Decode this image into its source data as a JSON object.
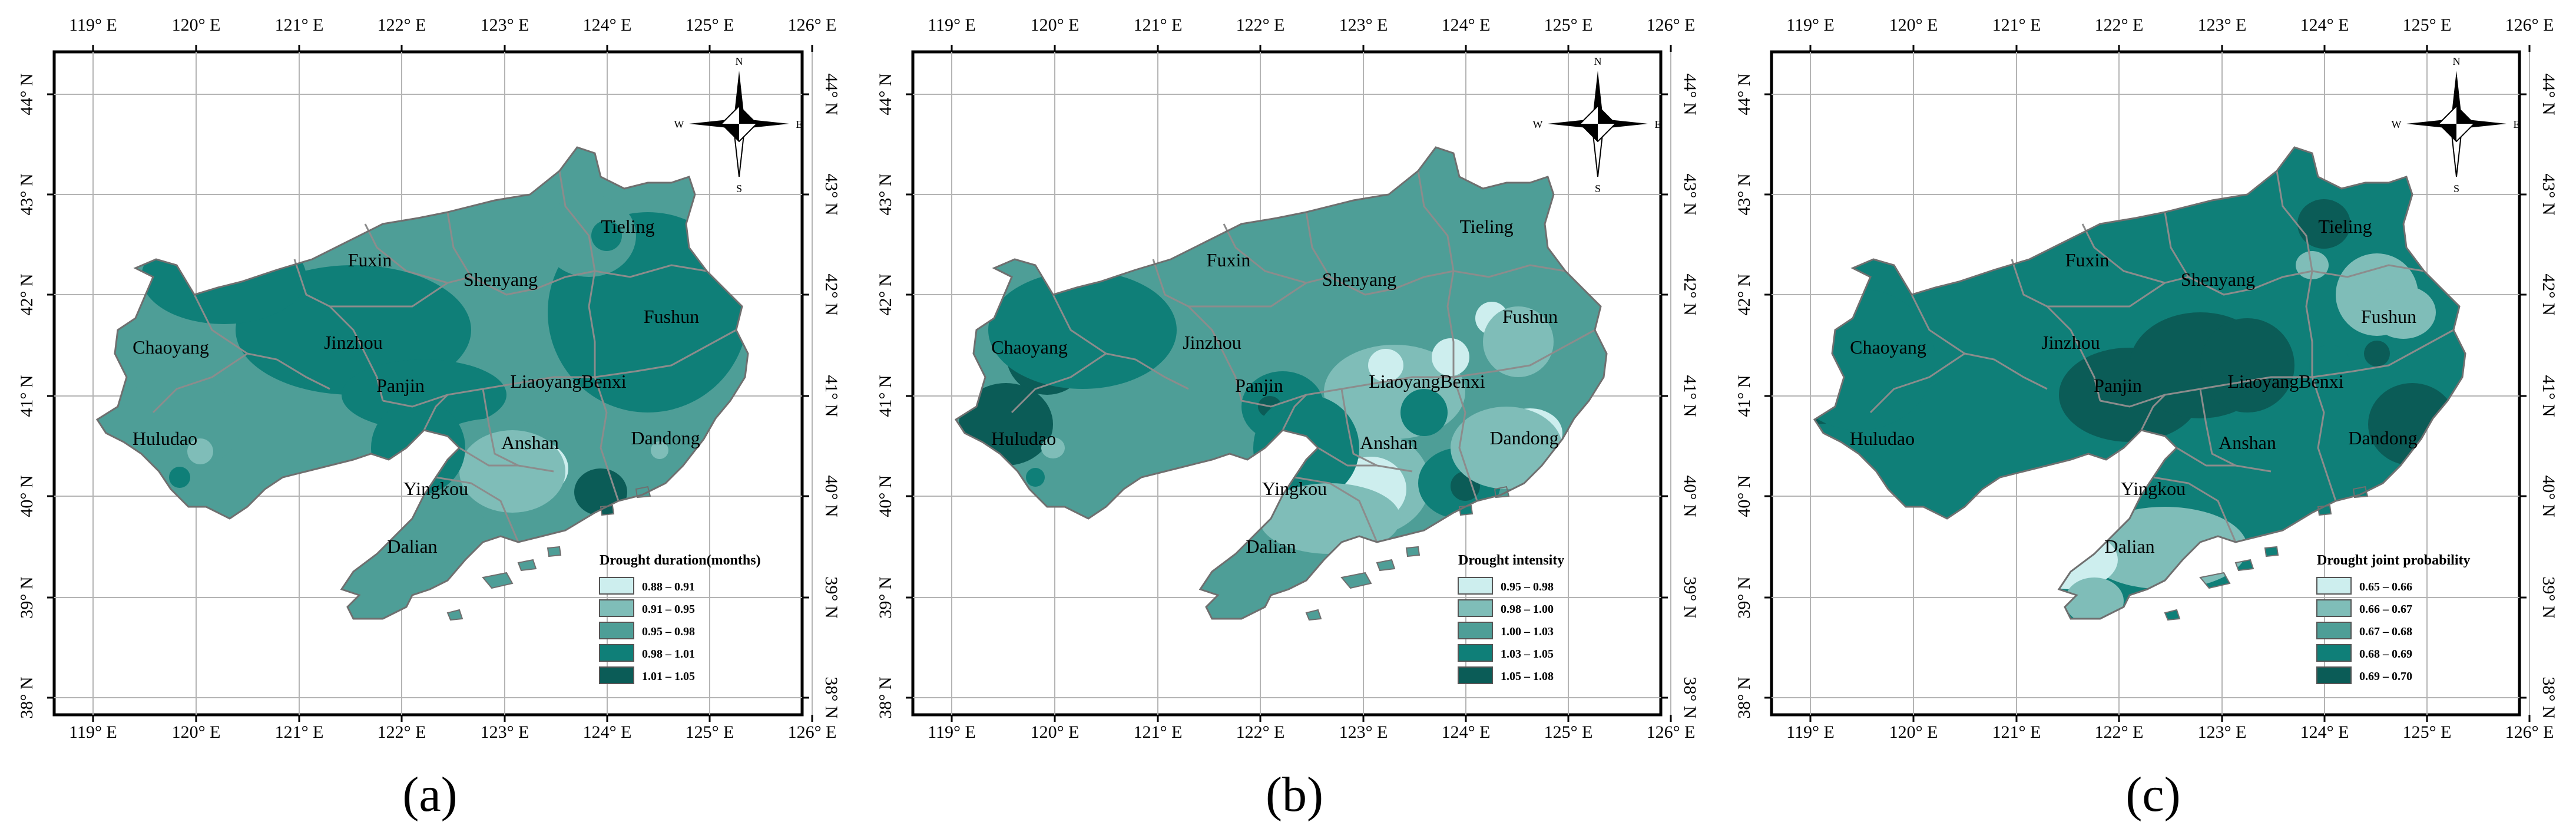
{
  "longitude_labels": [
    "119° E",
    "120° E",
    "121° E",
    "122° E",
    "123° E",
    "124° E",
    "125° E",
    "126° E"
  ],
  "latitude_labels": [
    "44° N",
    "43° N",
    "42° N",
    "41° N",
    "40° N",
    "39° N",
    "38° N"
  ],
  "compass": {
    "n": "N",
    "s": "S",
    "e": "E",
    "w": "W"
  },
  "cities": [
    "Tieling",
    "Fuxin",
    "Shenyang",
    "Fushun",
    "Chaoyang",
    "Jinzhou",
    "Panjin",
    "LiaoyangBenxi",
    "Huludao",
    "Anshan",
    "Dandong",
    "Yingkou",
    "Dalian"
  ],
  "panels": [
    {
      "label": "(a)",
      "legend_title": "Drought duration(months)",
      "legend": [
        "0.88 – 0.91",
        "0.91 – 0.95",
        "0.95 – 0.98",
        "0.98 – 1.01",
        "1.01 – 1.05"
      ]
    },
    {
      "label": "(b)",
      "legend_title": "Drought intensity",
      "legend": [
        "0.95 – 0.98",
        "0.98 – 1.00",
        "1.00 – 1.03",
        "1.03 – 1.05",
        "1.05 – 1.08"
      ]
    },
    {
      "label": "(c)",
      "legend_title": "Drought joint probability",
      "legend": [
        "0.65 – 0.66",
        "0.66 – 0.67",
        "0.67 – 0.68",
        "0.68 – 0.69",
        "0.69 – 0.70"
      ]
    }
  ],
  "colors": {
    "class1": "#cdeeee",
    "class2": "#7fbdb8",
    "class3": "#4e9e97",
    "class4": "#0f7f78",
    "class5": "#0b5c57",
    "boundary": "#8c8c8c",
    "grid": "#b4b4b4"
  }
}
